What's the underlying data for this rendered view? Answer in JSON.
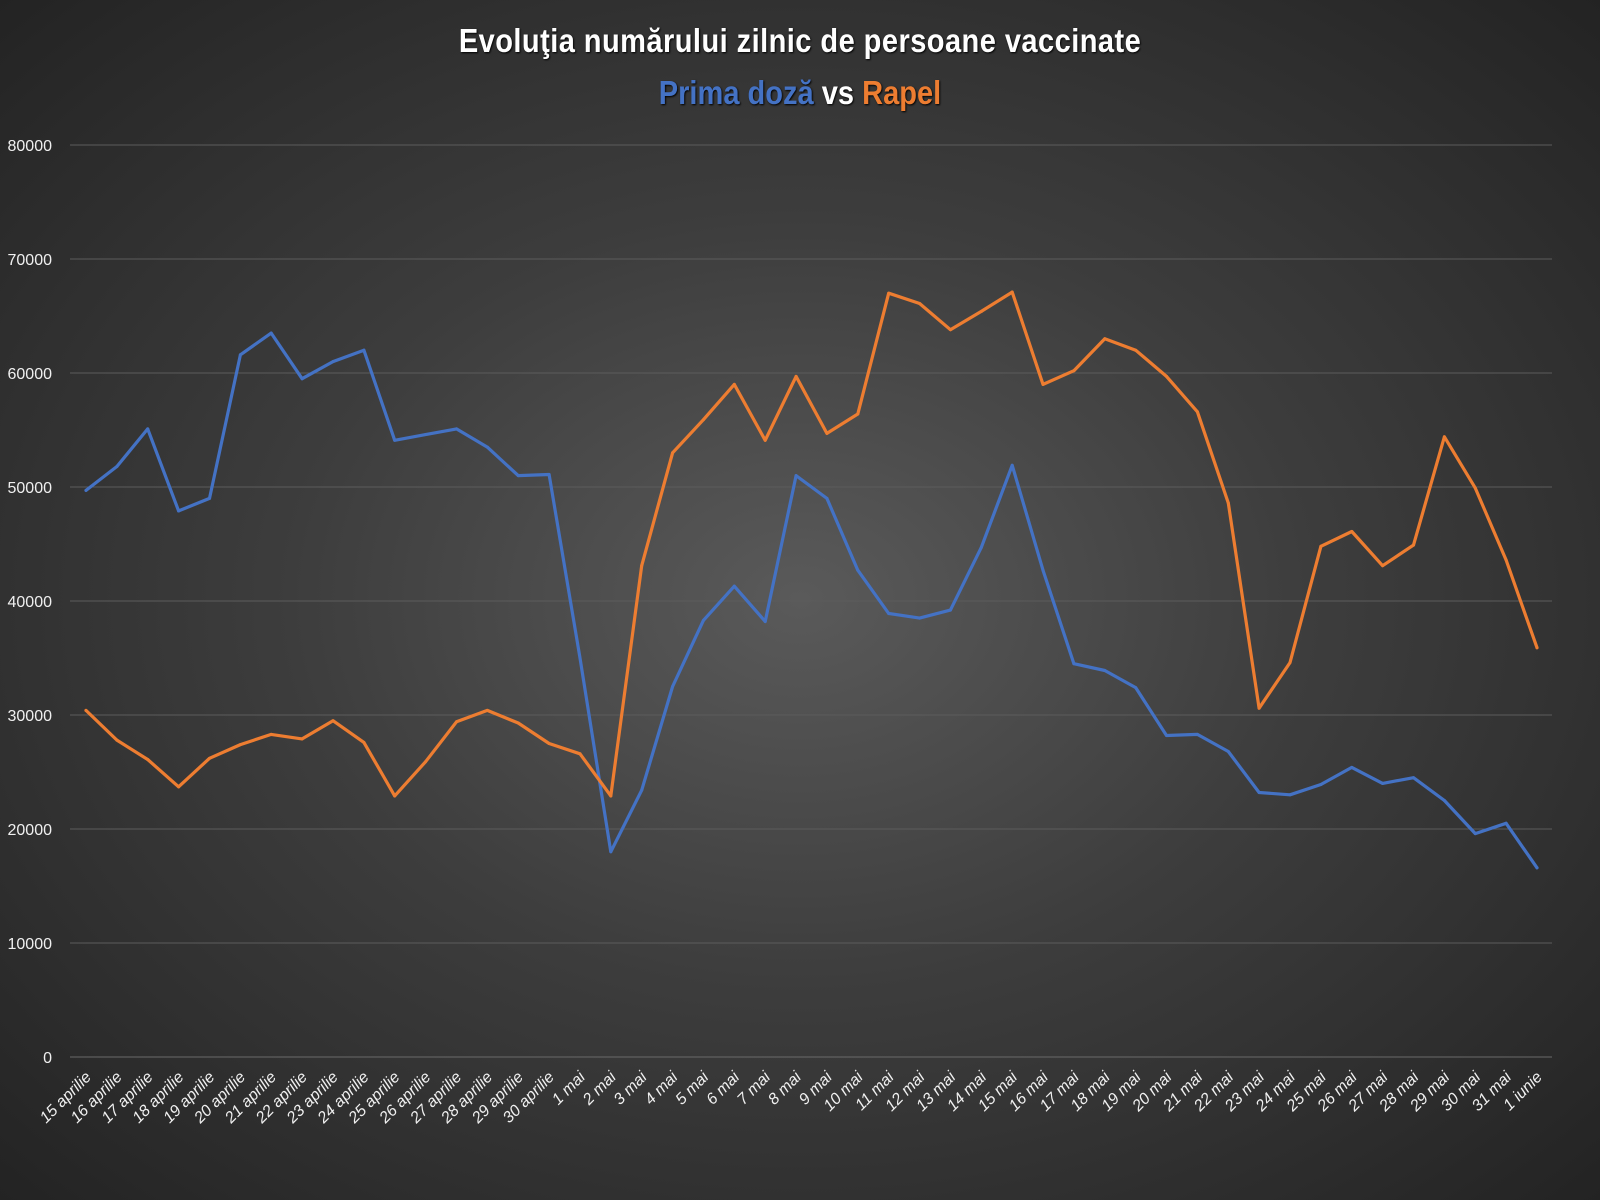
{
  "chart_data": {
    "type": "line",
    "title": "Evoluţia numărului zilnic de persoane vaccinate",
    "subtitle": {
      "part1": "Prima doză",
      "part2": " vs ",
      "part3": "Rapel"
    },
    "xlabel": "",
    "ylabel": "",
    "ylim": [
      0,
      80000
    ],
    "yticks": [
      0,
      10000,
      20000,
      30000,
      40000,
      50000,
      60000,
      70000,
      80000
    ],
    "grid": true,
    "legend": "none",
    "categories": [
      "15 aprilie",
      "16 aprilie",
      "17 aprilie",
      "18 aprilie",
      "19 aprilie",
      "20 aprilie",
      "21 aprilie",
      "22 aprilie",
      "23 aprilie",
      "24 aprilie",
      "25 aprilie",
      "26 aprilie",
      "27 aprilie",
      "28 aprilie",
      "29 aprilie",
      "30 aprilie",
      "1 mai",
      "2 mai",
      "3 mai",
      "4 mai",
      "5 mai",
      "6 mai",
      "7 mai",
      "8 mai",
      "9 mai",
      "10 mai",
      "11 mai",
      "12 mai",
      "13 mai",
      "14 mai",
      "15 mai",
      "16 mai",
      "17 mai",
      "18 mai",
      "19 mai",
      "20 mai",
      "21 mai",
      "22 mai",
      "23 mai",
      "24 mai",
      "25 mai",
      "26 mai",
      "27 mai",
      "28 mai",
      "29 mai",
      "30 mai",
      "31 mai",
      "1 iunie"
    ],
    "series": [
      {
        "name": "Prima doză",
        "color": "#4472C4",
        "values": [
          49700,
          51800,
          55100,
          47900,
          49000,
          61600,
          63500,
          59500,
          61000,
          62000,
          54100,
          54600,
          55100,
          53500,
          51000,
          51100,
          35000,
          18000,
          23400,
          32500,
          38300,
          41300,
          38200,
          51000,
          49000,
          42700,
          38900,
          38500,
          39200,
          44700,
          51900,
          42700,
          34500,
          33900,
          32400,
          28200,
          28300,
          26800,
          23200,
          23000,
          23900,
          25400,
          24000,
          24500,
          22500,
          19600,
          20500,
          16600
        ]
      },
      {
        "name": "Rapel",
        "color": "#ED7D31",
        "values": [
          30400,
          27800,
          26100,
          23700,
          26200,
          27400,
          28300,
          27900,
          29500,
          27600,
          22900,
          25900,
          29400,
          30400,
          29300,
          27500,
          26600,
          22900,
          43100,
          53000,
          55900,
          59000,
          54100,
          59700,
          54700,
          56400,
          67000,
          66100,
          63800,
          65400,
          67100,
          59000,
          60200,
          63000,
          62000,
          59700,
          56600,
          48600,
          30600,
          34600,
          44800,
          46100,
          43100,
          44900,
          54400,
          49900,
          43600,
          35900
        ]
      }
    ]
  }
}
